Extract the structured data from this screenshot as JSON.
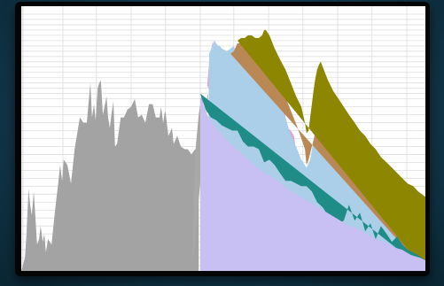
{
  "chart_data": {
    "type": "area",
    "title": "",
    "xlabel": "",
    "ylabel": "",
    "xlim": [
      0,
      100
    ],
    "ylim": [
      0,
      100
    ],
    "grid": true,
    "legend": "none",
    "series": [
      {
        "color": "#a3a3a3",
        "x": [
          0,
          0.9,
          1.3,
          1.8,
          2.2,
          2.6,
          3.1,
          3.5,
          3.9,
          4.4,
          4.8,
          5.3,
          5.7,
          6.1,
          6.6,
          7.5,
          8.3,
          9.2,
          9.6,
          10.1,
          10.5,
          11.4,
          12.3,
          13.2,
          14.5,
          15.4,
          16.2,
          17.1,
          17.5,
          18,
          18.4,
          18.9,
          19.3,
          19.7,
          20.2,
          20.6,
          21.1,
          21.5,
          21.9,
          22.4,
          22.8,
          23.2,
          23.7,
          24.6,
          25.4,
          26.3,
          27.2,
          28.1,
          28.9,
          29.8,
          30.7,
          31.6,
          32.5,
          33.3,
          34.2,
          34.6,
          35.1,
          35.5,
          35.7,
          36.4,
          37.3,
          37.7,
          38.6,
          39.5,
          40.4,
          41.2,
          42.1,
          43,
          43.9,
          43.9
        ],
        "y": [
          0,
          5,
          14,
          31,
          25,
          21,
          30,
          20,
          10,
          12,
          17,
          11,
          14,
          7,
          12,
          10,
          22,
          34,
          40,
          34,
          42,
          40,
          33,
          46,
          58,
          56,
          56,
          71,
          58,
          63,
          57,
          69,
          71,
          72,
          59,
          62,
          66,
          58,
          54,
          60,
          64,
          47,
          48,
          58,
          58,
          61,
          62,
          65,
          58,
          59,
          56,
          63,
          63,
          58,
          58,
          62,
          56,
          60,
          60,
          51,
          54,
          48,
          51,
          47,
          46,
          46,
          44,
          46,
          45,
          0
        ]
      },
      {
        "color": "#a8a8a8",
        "x": [
          42.3,
          43,
          43.9,
          44.7,
          45.2,
          45.6,
          46,
          46.3
        ],
        "y": [
          0,
          44,
          59,
          67,
          61,
          56,
          66,
          67
        ]
      },
      {
        "color": "#dba9d6",
        "x": [
          46,
          46.5,
          47.4,
          48.2,
          49.1,
          49.6,
          50,
          50.9,
          51.8,
          52.6,
          53.5,
          54.4,
          55.3,
          56.1,
          57,
          57.9,
          58.8,
          59.6,
          60.5,
          61.4,
          62.3,
          63.2,
          64,
          64.9,
          65.8,
          66.7,
          67.5,
          68.4,
          69.3,
          70.2,
          70.6
        ],
        "y": [
          70,
          79,
          87,
          74,
          73,
          82,
          71,
          67,
          74,
          68,
          68,
          81,
          66,
          74,
          68,
          77,
          71,
          65,
          60,
          65,
          62,
          61,
          59,
          63,
          54,
          53,
          51,
          40,
          28,
          25,
          0
        ]
      },
      {
        "color": "#abcfe9",
        "x": [
          46,
          46.5,
          47.8,
          48.7,
          49.1,
          49.6,
          50.9,
          51.8,
          52.6,
          53.5,
          54.4,
          55.3,
          56.1,
          57,
          57.9,
          59.2,
          60.1,
          61.4,
          62.7,
          64,
          65.4,
          66.7,
          68,
          69.3,
          70.6,
          71.5,
          72.8,
          73.2,
          73.7,
          74.1,
          75,
          75.9,
          76.8,
          78.1,
          79.4,
          80.7,
          82,
          83.3,
          84.6,
          86,
          87.3,
          88.6,
          89.9,
          91.2,
          92.5,
          93.9,
          95.2,
          96.5,
          97.8,
          99.1,
          100,
          100
        ],
        "y": [
          0,
          82,
          87,
          85,
          85,
          84,
          83,
          84,
          85,
          80,
          80,
          79,
          79,
          79,
          79,
          76,
          73,
          71,
          67,
          62,
          58,
          51,
          47,
          42,
          39,
          42,
          54,
          60,
          63,
          62,
          57,
          53,
          50,
          46,
          44,
          41,
          39,
          37,
          35,
          33,
          31,
          29,
          27,
          25,
          23,
          22,
          20,
          18,
          17,
          16,
          15,
          0
        ]
      },
      {
        "color": "#b98855",
        "x": [
          51.8,
          52.6,
          53.5,
          54.4,
          55.3,
          56.1,
          57,
          57.9,
          59.2,
          60.5,
          61.8,
          63.2,
          64.5,
          65.8,
          67.1,
          68.4,
          69.3,
          70.2,
          70.6,
          71.1,
          71.9,
          72.8,
          73.7,
          74.1,
          74.6,
          75.4,
          76.3,
          77.2,
          78.5,
          79.8,
          81.1,
          82.5,
          83.8,
          85.1,
          86.4,
          87.7,
          89,
          90.4,
          91.7,
          93,
          94.3,
          95.6,
          97,
          98.2,
          99.1,
          100,
          100
        ],
        "y": [
          82,
          83,
          86,
          86,
          86,
          85,
          86,
          87,
          85,
          81,
          78,
          74,
          69,
          64,
          59,
          54,
          50,
          46,
          40,
          42,
          47,
          52,
          58,
          66,
          64,
          60,
          57,
          54,
          51,
          49,
          47,
          44,
          42,
          40,
          37,
          35,
          33,
          31,
          29,
          27,
          26,
          24,
          22,
          21,
          20,
          19,
          0
        ]
      },
      {
        "color": "#8d8600",
        "x": [
          53.5,
          54.4,
          55.3,
          56.1,
          57,
          57.9,
          58.8,
          59.6,
          60.1,
          60.5,
          61.4,
          62.7,
          64,
          65.4,
          66.7,
          68,
          69.3,
          70.2,
          70.6,
          71.1,
          71.5,
          71.9,
          72.4,
          72.8,
          73.2,
          73.7,
          74.1,
          74.6,
          75.9,
          77.2,
          78.5,
          79.8,
          81.1,
          82.5,
          83.8,
          85.1,
          86.4,
          87.7,
          89,
          90.4,
          91.7,
          93,
          94.3,
          95.6,
          97,
          98.2,
          99.1,
          100,
          100
        ],
        "y": [
          87,
          88,
          88,
          89,
          89,
          88,
          88,
          89,
          91,
          91,
          89,
          84,
          80,
          76,
          71,
          66,
          62,
          56,
          52,
          53,
          58,
          63,
          69,
          73,
          76,
          78,
          79,
          77,
          72,
          68,
          65,
          62,
          59,
          56,
          53,
          51,
          48,
          46,
          43,
          41,
          39,
          37,
          35,
          33,
          32,
          30,
          29,
          28,
          0
        ]
      },
      {
        "color": "#1f8c88",
        "x": [
          44.3,
          45.6,
          46.9,
          48.2,
          49.6,
          50.9,
          52.2,
          53.5,
          54.8,
          56.1,
          57.5,
          58.8,
          60.1,
          61.4,
          62.7,
          64,
          65.4,
          66.7,
          68,
          69.3,
          70.6,
          71.9,
          73.2,
          74.6,
          75.9,
          77.2,
          78.5,
          79.8,
          81.1,
          82.5,
          83.8,
          85.1,
          86.4,
          87.7,
          89,
          90.4,
          91.7,
          93,
          94.3,
          95.6,
          97,
          98.2,
          99.1,
          100,
          100
        ],
        "y": [
          67,
          61,
          58,
          57,
          55,
          54,
          53,
          53,
          49,
          47,
          47,
          46,
          41,
          42,
          40,
          37,
          34,
          34,
          33,
          32,
          32,
          30,
          26,
          24,
          21,
          20,
          18,
          19,
          25,
          19,
          22,
          15,
          18,
          12,
          17,
          14,
          11,
          13,
          10,
          8,
          7,
          6,
          5,
          4,
          0
        ]
      },
      {
        "color": "#c8bff3",
        "x": [
          44.3,
          46,
          48.2,
          50.4,
          52.6,
          54.8,
          57,
          59.2,
          61.4,
          63.6,
          65.8,
          68,
          70.2,
          72.4,
          74.6,
          76.8,
          79,
          81.1,
          83.3,
          85.5,
          87.7,
          89.9,
          92.1,
          94.3,
          96.5,
          98.7,
          100,
          100,
          44.3
        ],
        "y": [
          66,
          59,
          54,
          50,
          47,
          44,
          41,
          38,
          36,
          34,
          31,
          29,
          27,
          25,
          23,
          21,
          19,
          17,
          16,
          14,
          12,
          11,
          9,
          8,
          6,
          5,
          4,
          0,
          0
        ]
      }
    ]
  }
}
